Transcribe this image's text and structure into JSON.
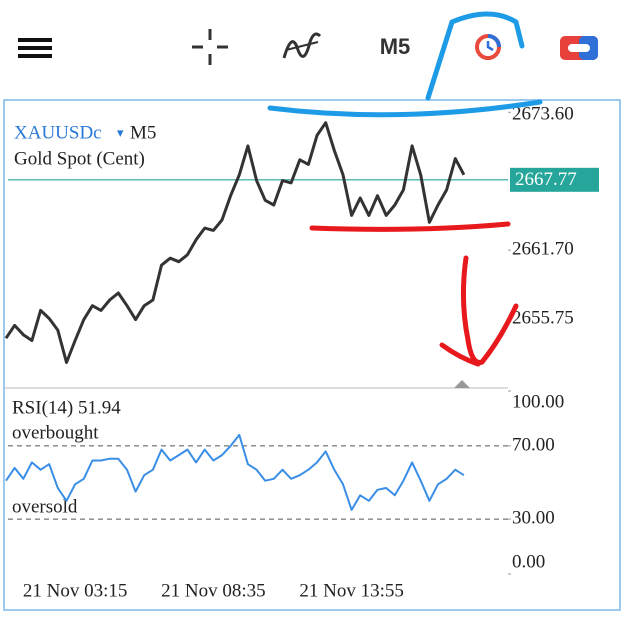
{
  "toolbar": {
    "timeframe": "M5"
  },
  "chart_data": [
    {
      "type": "line",
      "symbol": "XAUUSDc",
      "timeframe": "M5",
      "subtitle": "Gold Spot (Cent)",
      "categories": [
        null,
        null,
        null,
        null,
        null,
        null,
        null,
        null,
        "21 Nov 03:15",
        null,
        null,
        null,
        null,
        null,
        null,
        null,
        null,
        null,
        null,
        null,
        null,
        null,
        null,
        null,
        "21 Nov 08:35",
        null,
        null,
        null,
        null,
        null,
        null,
        null,
        null,
        null,
        null,
        null,
        null,
        null,
        null,
        null,
        "21 Nov 13:55",
        null,
        null,
        null,
        null,
        null,
        null,
        null,
        null,
        null,
        null,
        null,
        null,
        null
      ],
      "values": [
        2654.1,
        2655.2,
        2654.4,
        2653.9,
        2656.5,
        2655.8,
        2654.8,
        2652.0,
        2653.9,
        2655.7,
        2656.9,
        2656.5,
        2657.4,
        2658.0,
        2656.9,
        2655.7,
        2656.9,
        2657.4,
        2660.4,
        2661.0,
        2660.7,
        2661.3,
        2662.6,
        2663.6,
        2663.4,
        2664.3,
        2666.4,
        2668.2,
        2670.7,
        2667.7,
        2666.0,
        2665.6,
        2667.7,
        2667.5,
        2669.5,
        2669.1,
        2671.6,
        2672.7,
        2670.3,
        2668.2,
        2664.7,
        2666.2,
        2664.7,
        2666.4,
        2664.7,
        2665.6,
        2666.9,
        2670.7,
        2668.2,
        2664.1,
        2665.6,
        2666.9,
        2669.6,
        2668.2
      ],
      "color": "#333333",
      "last_price": 2667.77,
      "last_price_color": "#26a69a",
      "ylim": [
        2649.8,
        2674.4
      ],
      "yticks": [
        {
          "value": 2673.6,
          "label": "2673.60"
        },
        {
          "value": 2661.7,
          "label": "2661.70"
        },
        {
          "value": 2655.75,
          "label": "2655.75"
        }
      ]
    },
    {
      "type": "line",
      "title": "RSI(14) 51.94",
      "annotations": [
        "overbought",
        "oversold"
      ],
      "values": [
        51,
        58,
        52,
        61,
        57,
        60,
        47,
        40,
        49,
        52,
        62,
        62,
        63,
        63,
        57,
        45,
        54,
        57,
        68,
        62,
        65,
        68,
        61,
        68,
        62,
        65,
        70,
        76,
        60,
        57,
        51,
        52,
        57,
        52,
        54,
        57,
        61,
        67,
        57,
        49,
        35,
        43,
        40,
        46,
        47,
        43,
        51,
        61,
        51,
        40,
        49,
        52,
        57,
        54
      ],
      "color": "#3a8ee6",
      "levels": [
        70,
        30
      ],
      "ylim": [
        0,
        100
      ],
      "yticks": [
        {
          "value": 100,
          "label": "100.00"
        },
        {
          "value": 70,
          "label": "70.00"
        },
        {
          "value": 30,
          "label": "30.00"
        },
        {
          "value": 0,
          "label": "0.00"
        }
      ]
    }
  ]
}
